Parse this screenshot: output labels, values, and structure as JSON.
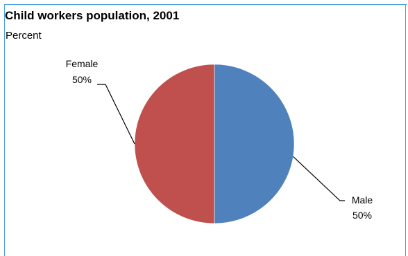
{
  "chart_data": {
    "type": "pie",
    "title": "Child workers population, 2001",
    "subtitle": "Percent",
    "slices": [
      {
        "label": "Male",
        "value": 50,
        "value_label": "50%",
        "color": "#4f81bd"
      },
      {
        "label": "Female",
        "value": 50,
        "value_label": "50%",
        "color": "#c0504d"
      }
    ],
    "start": "top",
    "direction": "clockwise",
    "legend": "none",
    "frame_color": "#4aa3df"
  }
}
